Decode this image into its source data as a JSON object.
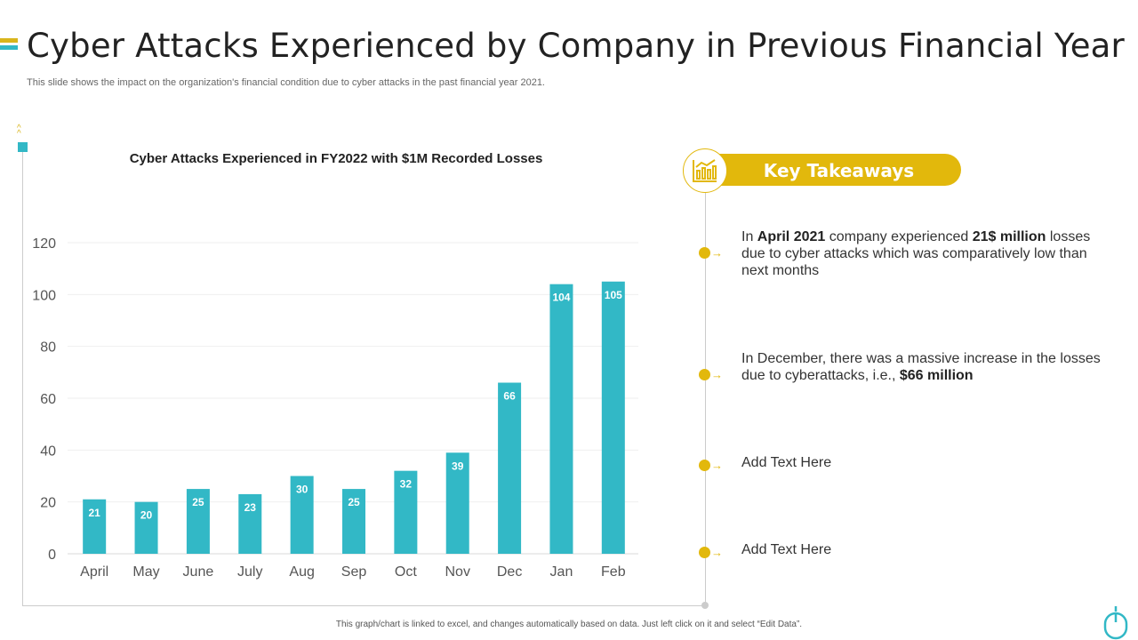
{
  "header": {
    "title": "Cyber Attacks Experienced by Company in Previous Financial Year",
    "subtitle": "This slide shows the impact on the organization's financial condition due to cyber attacks in the past financial year 2021."
  },
  "chart_data": {
    "type": "bar",
    "title": "Cyber Attacks Experienced in FY2022 with $1M Recorded Losses",
    "categories": [
      "April",
      "May",
      "June",
      "July",
      "Aug",
      "Sep",
      "Oct",
      "Nov",
      "Dec",
      "Jan",
      "Feb"
    ],
    "values": [
      21,
      20,
      25,
      23,
      30,
      25,
      32,
      39,
      66,
      104,
      105
    ],
    "ylim": [
      0,
      120
    ],
    "yticks": [
      "0",
      "20",
      "40",
      "60",
      "80",
      "100",
      "120"
    ],
    "grid": true,
    "bar_color": "#32b8c6",
    "data_labels": true
  },
  "takeaways": {
    "heading": "Key Takeaways",
    "icon": "bar-chart-icon",
    "items": [
      {
        "parts": [
          {
            "t": "In ",
            "b": false
          },
          {
            "t": "April 2021",
            "b": true
          },
          {
            "t": " company experienced ",
            "b": false
          },
          {
            "t": "21$ million",
            "b": true
          },
          {
            "t": " losses due to cyber attacks which was comparatively low than next months",
            "b": false
          }
        ]
      },
      {
        "parts": [
          {
            "t": "In December, there was a massive increase in the losses due to cyberattacks, i.e., ",
            "b": false
          },
          {
            "t": "$66 million",
            "b": true
          }
        ]
      },
      {
        "parts": [
          {
            "t": "Add Text Here",
            "b": false
          }
        ]
      },
      {
        "parts": [
          {
            "t": "Add Text Here",
            "b": false
          }
        ]
      }
    ]
  },
  "footer": {
    "note": "This graph/chart is linked to excel, and changes automatically based on data. Just left click on it and select “Edit Data”."
  },
  "colors": {
    "accent_yellow": "#e2b80c",
    "accent_teal": "#32b8c6"
  }
}
